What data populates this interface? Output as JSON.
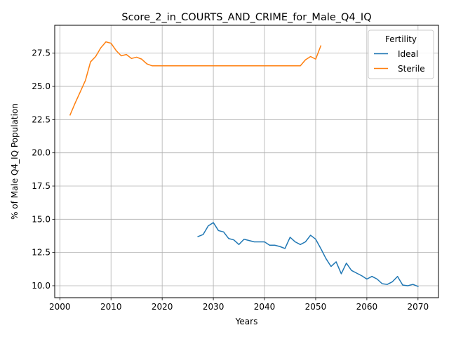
{
  "chart_data": {
    "type": "line",
    "title": "Score_2_in_COURTS_AND_CRIME_for_Male_Q4_IQ",
    "xlabel": "Years",
    "ylabel": "% of Male Q4_IQ Population",
    "xlim": [
      1999,
      2074
    ],
    "ylim": [
      9.1,
      29.6
    ],
    "xticks": [
      2000,
      2010,
      2020,
      2030,
      2040,
      2050,
      2060,
      2070
    ],
    "yticks": [
      10.0,
      12.5,
      15.0,
      17.5,
      20.0,
      22.5,
      25.0,
      27.5
    ],
    "xtick_labels": [
      "2000",
      "2010",
      "2020",
      "2030",
      "2040",
      "2050",
      "2060",
      "2070"
    ],
    "ytick_labels": [
      "10.0",
      "12.5",
      "15.0",
      "17.5",
      "20.0",
      "22.5",
      "25.0",
      "27.5"
    ],
    "grid": true,
    "legend": {
      "title": "Fertility",
      "placement": "top-right"
    },
    "series": [
      {
        "name": "Ideal",
        "color": "#1f77b4",
        "x": [
          2027,
          2028,
          2029,
          2030,
          2031,
          2032,
          2033,
          2034,
          2035,
          2036,
          2037,
          2038,
          2039,
          2040,
          2041,
          2042,
          2043,
          2044,
          2045,
          2046,
          2047,
          2048,
          2049,
          2050,
          2051,
          2052,
          2053,
          2054,
          2055,
          2056,
          2057,
          2058,
          2059,
          2060,
          2061,
          2062,
          2063,
          2064,
          2065,
          2066,
          2067,
          2068,
          2069,
          2070
        ],
        "values": [
          13.7,
          13.85,
          14.5,
          14.75,
          14.15,
          14.05,
          13.55,
          13.45,
          13.1,
          13.5,
          13.4,
          13.3,
          13.3,
          13.3,
          13.05,
          13.05,
          12.95,
          12.8,
          13.65,
          13.3,
          13.1,
          13.3,
          13.8,
          13.5,
          12.8,
          12.05,
          11.45,
          11.8,
          10.9,
          11.7,
          11.15,
          10.95,
          10.75,
          10.5,
          10.7,
          10.5,
          10.15,
          10.1,
          10.3,
          10.7,
          10.05,
          10.0,
          10.1,
          9.95
        ]
      },
      {
        "name": "Sterile",
        "color": "#ff7f0e",
        "x": [
          2002,
          2003,
          2004,
          2005,
          2006,
          2007,
          2008,
          2009,
          2010,
          2011,
          2012,
          2013,
          2014,
          2015,
          2016,
          2017,
          2018,
          2019,
          2020,
          2021,
          2022,
          2023,
          2024,
          2025,
          2026,
          2027,
          2028,
          2029,
          2030,
          2031,
          2032,
          2033,
          2034,
          2035,
          2036,
          2037,
          2038,
          2039,
          2040,
          2041,
          2042,
          2043,
          2044,
          2045,
          2046,
          2047,
          2048,
          2049,
          2050,
          2051
        ],
        "values": [
          22.85,
          23.75,
          24.6,
          25.45,
          26.85,
          27.25,
          27.9,
          28.35,
          28.25,
          27.7,
          27.3,
          27.4,
          27.1,
          27.2,
          27.05,
          26.7,
          26.55,
          26.55,
          26.55,
          26.55,
          26.55,
          26.55,
          26.55,
          26.55,
          26.55,
          26.55,
          26.55,
          26.55,
          26.55,
          26.55,
          26.55,
          26.55,
          26.55,
          26.55,
          26.55,
          26.55,
          26.55,
          26.55,
          26.55,
          26.55,
          26.55,
          26.55,
          26.55,
          26.55,
          26.55,
          26.55,
          27.0,
          27.25,
          27.05,
          28.05
        ]
      }
    ]
  }
}
